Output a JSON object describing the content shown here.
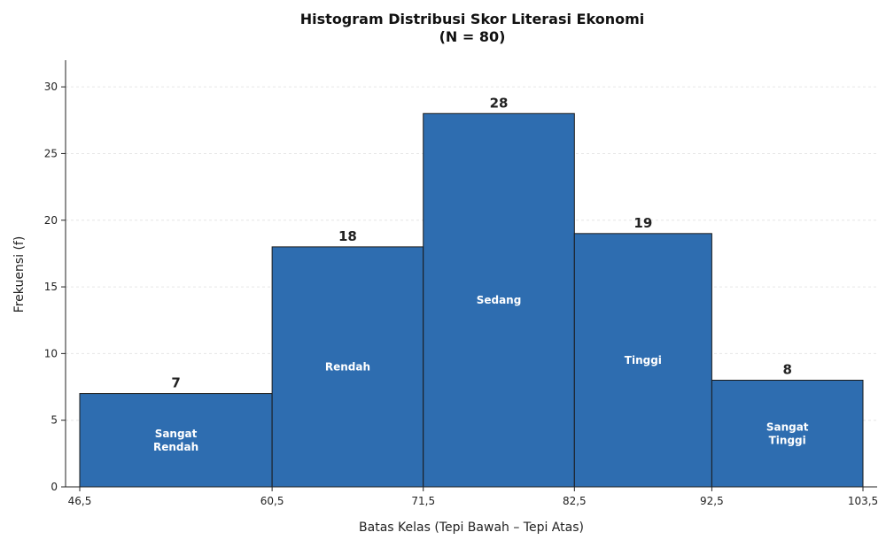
{
  "chart_data": {
    "type": "bar",
    "title_line1": "Histogram Distribusi Skor Literasi Ekonomi",
    "title_line2": "(N = 80)",
    "xlabel": "Batas Kelas (Tepi Bawah – Tepi Atas)",
    "ylabel": "Frekuensi (f)",
    "bin_edges": [
      46.5,
      60.5,
      71.5,
      82.5,
      92.5,
      103.5
    ],
    "x_tick_labels": [
      "46,5",
      "60,5",
      "71,5",
      "82,5",
      "92,5",
      "103,5"
    ],
    "values": [
      7,
      18,
      28,
      19,
      8
    ],
    "categories": [
      [
        "Sangat",
        "Rendah"
      ],
      [
        "Rendah"
      ],
      [
        "Sedang"
      ],
      [
        "Tinggi"
      ],
      [
        "Sangat",
        "Tinggi"
      ]
    ],
    "ylim": [
      0,
      32
    ],
    "y_ticks": [
      0,
      5,
      10,
      15,
      20,
      25,
      30
    ],
    "grid": "horizontal, dashed",
    "bar_color": "#2e6db0"
  }
}
